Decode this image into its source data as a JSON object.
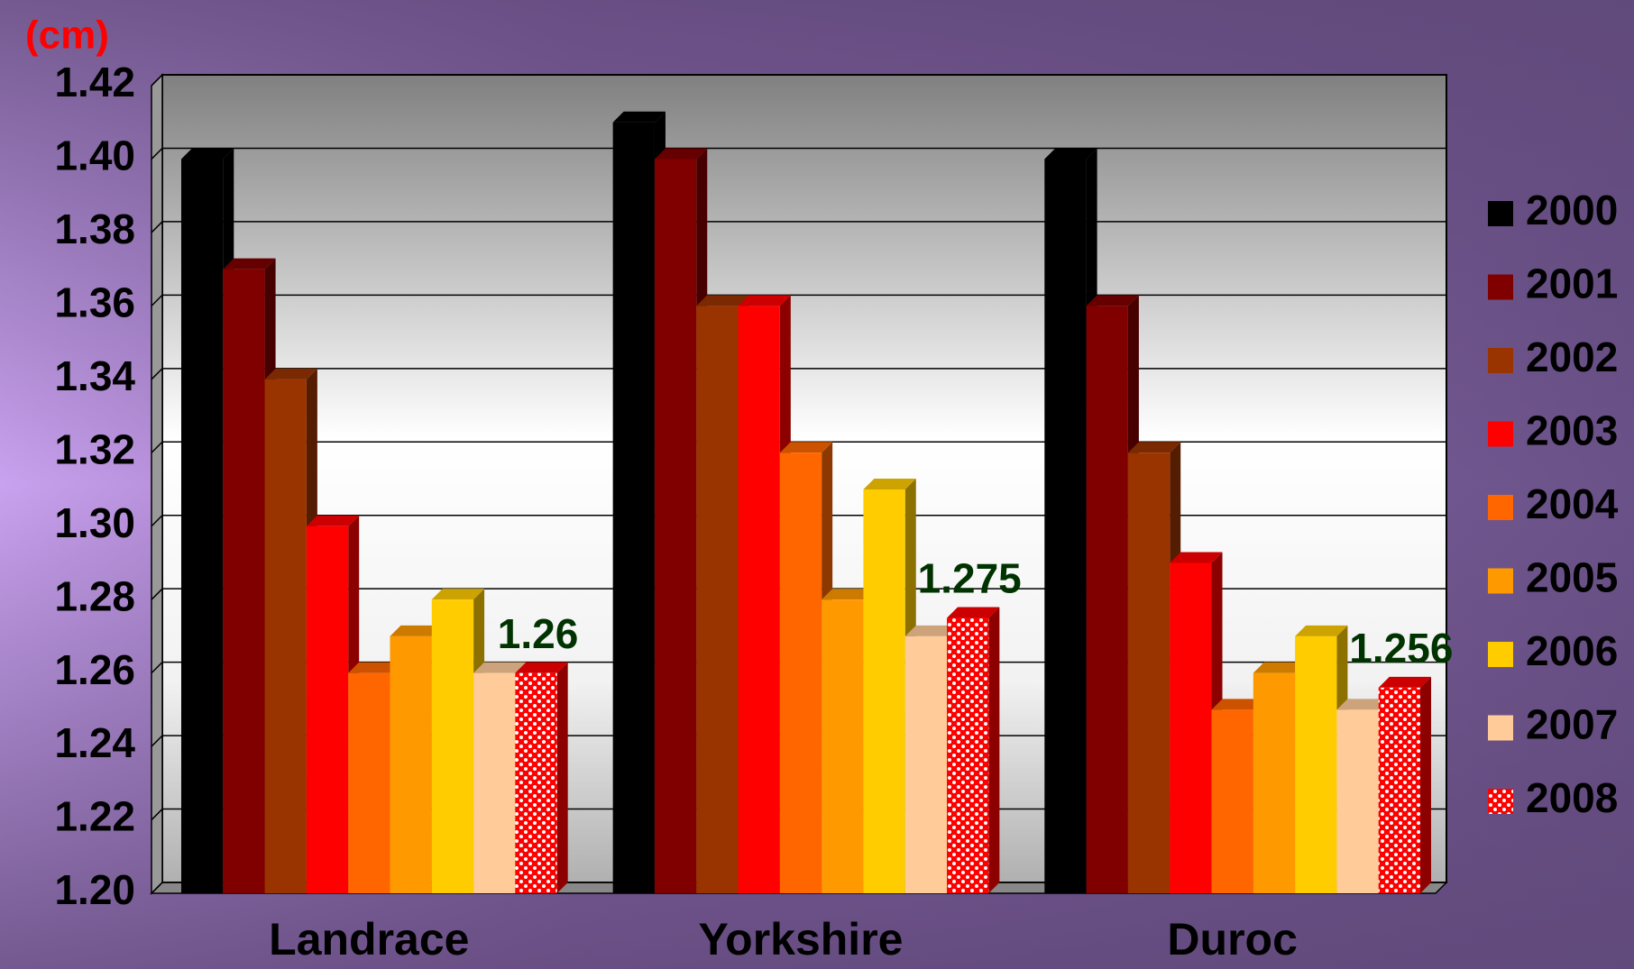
{
  "chart_data": {
    "type": "bar",
    "y_label": "(cm)",
    "categories": [
      "Landrace",
      "Yorkshire",
      "Duroc"
    ],
    "series": [
      {
        "name": "2000",
        "color": "#000000",
        "values": [
          1.4,
          1.41,
          1.4
        ]
      },
      {
        "name": "2001",
        "color": "#800000",
        "values": [
          1.37,
          1.4,
          1.36
        ]
      },
      {
        "name": "2002",
        "color": "#993300",
        "values": [
          1.34,
          1.36,
          1.32
        ]
      },
      {
        "name": "2003",
        "color": "#ff0000",
        "values": [
          1.3,
          1.36,
          1.29
        ]
      },
      {
        "name": "2004",
        "color": "#ff6600",
        "values": [
          1.26,
          1.32,
          1.25
        ]
      },
      {
        "name": "2005",
        "color": "#ff9900",
        "values": [
          1.27,
          1.28,
          1.26
        ]
      },
      {
        "name": "2006",
        "color": "#ffcc00",
        "values": [
          1.28,
          1.31,
          1.27
        ]
      },
      {
        "name": "2007",
        "color": "#ffcc99",
        "values": [
          1.26,
          1.27,
          1.25
        ]
      },
      {
        "name": "2008",
        "color": "#ff0000",
        "pattern": "dots",
        "data_labels": true,
        "values": [
          1.26,
          1.275,
          1.256
        ]
      }
    ],
    "ylim": [
      1.2,
      1.42
    ],
    "yticks": [
      {
        "value": 1.2,
        "label": "1.20"
      },
      1.22,
      1.24,
      1.26,
      1.28,
      {
        "value": 1.3,
        "label": "1.30"
      },
      1.32,
      1.34,
      1.36,
      1.38,
      {
        "value": 1.4,
        "label": "1.40"
      },
      1.42
    ],
    "grid": true,
    "legend": "right",
    "bar_style": "3d"
  }
}
